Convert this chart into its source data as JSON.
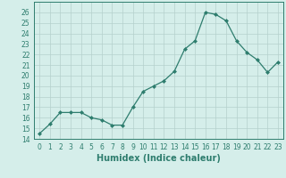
{
  "x": [
    0,
    1,
    2,
    3,
    4,
    5,
    6,
    7,
    8,
    9,
    10,
    11,
    12,
    13,
    14,
    15,
    16,
    17,
    18,
    19,
    20,
    21,
    22,
    23
  ],
  "y": [
    14.5,
    15.4,
    16.5,
    16.5,
    16.5,
    16.0,
    15.8,
    15.3,
    15.3,
    17.0,
    18.5,
    19.0,
    19.5,
    20.4,
    22.5,
    23.3,
    26.0,
    25.8,
    25.2,
    23.3,
    22.2,
    21.5,
    20.3,
    21.3
  ],
  "line_color": "#2e7d6e",
  "marker": "D",
  "marker_size": 2,
  "bg_color": "#d5eeea",
  "grid_color": "#b5d0cc",
  "xlabel": "Humidex (Indice chaleur)",
  "xlim": [
    -0.5,
    23.5
  ],
  "ylim": [
    14,
    27
  ],
  "yticks": [
    14,
    15,
    16,
    17,
    18,
    19,
    20,
    21,
    22,
    23,
    24,
    25,
    26
  ],
  "xticks": [
    0,
    1,
    2,
    3,
    4,
    5,
    6,
    7,
    8,
    9,
    10,
    11,
    12,
    13,
    14,
    15,
    16,
    17,
    18,
    19,
    20,
    21,
    22,
    23
  ],
  "xtick_labels": [
    "0",
    "1",
    "2",
    "3",
    "4",
    "5",
    "6",
    "7",
    "8",
    "9",
    "10",
    "11",
    "12",
    "13",
    "14",
    "15",
    "16",
    "17",
    "18",
    "19",
    "20",
    "21",
    "22",
    "23"
  ],
  "label_fontsize": 7,
  "tick_fontsize": 5.5
}
